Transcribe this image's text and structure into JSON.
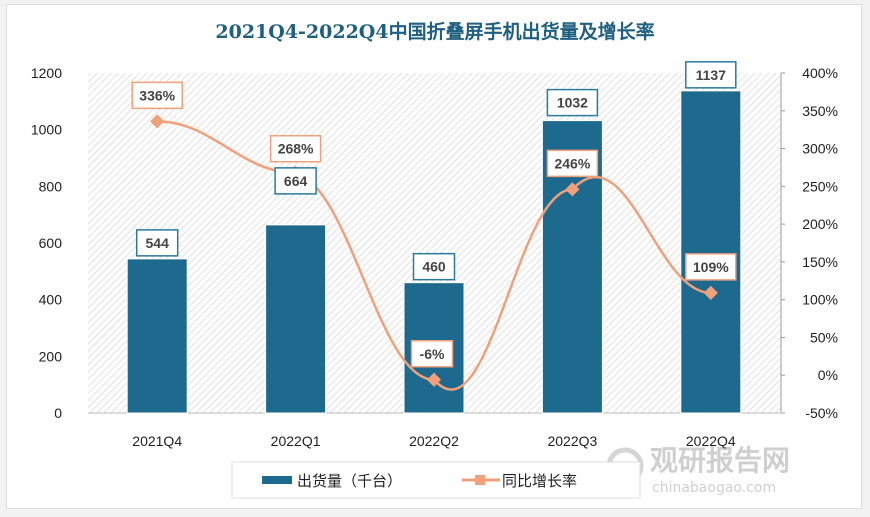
{
  "chart_data": {
    "type": "bar+line",
    "title": "2021Q4-2022Q4中国折叠屏手机出货量及增长率",
    "categories": [
      "2021Q4",
      "2022Q1",
      "2022Q2",
      "2022Q3",
      "2022Q4"
    ],
    "series": [
      {
        "name": "出货量（千台）",
        "type": "bar",
        "axis": "left",
        "values": [
          544,
          664,
          460,
          1032,
          1137
        ],
        "labels": [
          "544",
          "664",
          "460",
          "1032",
          "1137"
        ],
        "color": "#1d6a8e"
      },
      {
        "name": "同比增长率",
        "type": "line",
        "axis": "right",
        "values": [
          336,
          268,
          -6,
          246,
          109
        ],
        "labels": [
          "336%",
          "268%",
          "-6%",
          "246%",
          "109%"
        ],
        "color": "#f0a07a"
      }
    ],
    "left_axis": {
      "ylim": [
        0,
        1200
      ],
      "ticks": [
        "0",
        "200",
        "400",
        "600",
        "800",
        "1000",
        "1200"
      ]
    },
    "right_axis": {
      "ylim": [
        -50,
        400
      ],
      "ticks": [
        "-50%",
        "0%",
        "50%",
        "100%",
        "150%",
        "200%",
        "250%",
        "300%",
        "350%",
        "400%"
      ]
    },
    "legend": "bottom",
    "grid": false
  },
  "watermark": {
    "text": "观研报告网",
    "url_text": "chinabaogao.com"
  }
}
